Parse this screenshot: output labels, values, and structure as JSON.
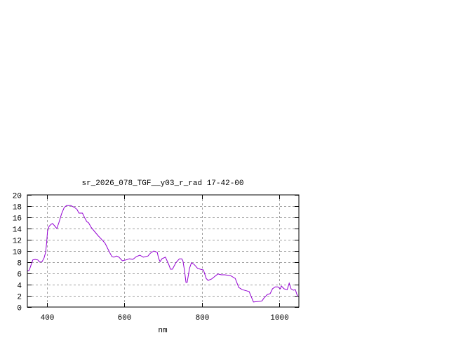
{
  "chart_data": {
    "type": "line",
    "title": "sr_2026_078_TGF__y03_r_rad 17-42-00",
    "xlabel": "nm",
    "ylabel": "",
    "xlim": [
      350,
      1050
    ],
    "ylim": [
      0,
      20
    ],
    "xticks": [
      400,
      600,
      800,
      1000
    ],
    "yticks": [
      0,
      2,
      4,
      6,
      8,
      10,
      12,
      14,
      16,
      18,
      20
    ],
    "grid": true,
    "line_color": "#9400d3",
    "series": [
      {
        "x": [
          350,
          355,
          364,
          370,
          377,
          382,
          388,
          393,
          397,
          400,
          402,
          406,
          411,
          415,
          420,
          426,
          431,
          438,
          445,
          451,
          462,
          472,
          478,
          483,
          492,
          498,
          503,
          508,
          514,
          523,
          532,
          541,
          550,
          555,
          562,
          568,
          573,
          580,
          586,
          595,
          604,
          613,
          622,
          631,
          640,
          649,
          661,
          667,
          676,
          685,
          688,
          692,
          697,
          706,
          715,
          719,
          724,
          733,
          742,
          748,
          751,
          755,
          759,
          762,
          768,
          773,
          780,
          789,
          796,
          804,
          811,
          816,
          825,
          841,
          850,
          859,
          874,
          886,
          895,
          904,
          915,
          922,
          924,
          933,
          946,
          955,
          960,
          969,
          976,
          982,
          989,
          996,
          1002,
          1005,
          1012,
          1020,
          1025,
          1030,
          1036,
          1041,
          1045,
          1048
        ],
        "y": [
          6.4,
          6.6,
          8.4,
          8.5,
          8.4,
          8.0,
          8.1,
          8.75,
          9.75,
          11.6,
          13.5,
          14.4,
          14.75,
          14.9,
          14.5,
          14.0,
          15.0,
          16.6,
          17.75,
          18.1,
          18.1,
          17.75,
          17.4,
          16.75,
          16.75,
          15.9,
          15.25,
          15.0,
          14.25,
          13.5,
          12.75,
          12.1,
          11.4,
          10.75,
          9.75,
          9.0,
          8.9,
          9.1,
          8.9,
          8.25,
          8.4,
          8.6,
          8.5,
          9.0,
          9.25,
          8.9,
          9.1,
          9.6,
          10.0,
          9.75,
          8.75,
          8.1,
          8.6,
          8.9,
          7.5,
          6.75,
          6.75,
          7.9,
          8.6,
          8.6,
          8.25,
          6.6,
          4.4,
          4.4,
          6.9,
          7.9,
          7.6,
          6.9,
          6.75,
          6.6,
          5.1,
          4.75,
          5.0,
          5.9,
          5.75,
          5.75,
          5.6,
          5.1,
          3.5,
          3.1,
          2.9,
          2.75,
          2.4,
          0.9,
          1.0,
          1.1,
          1.6,
          2.25,
          2.4,
          3.25,
          3.6,
          3.6,
          3.25,
          3.75,
          3.25,
          3.1,
          4.25,
          3.25,
          3.0,
          3.1,
          2.25,
          1.9
        ]
      }
    ]
  }
}
